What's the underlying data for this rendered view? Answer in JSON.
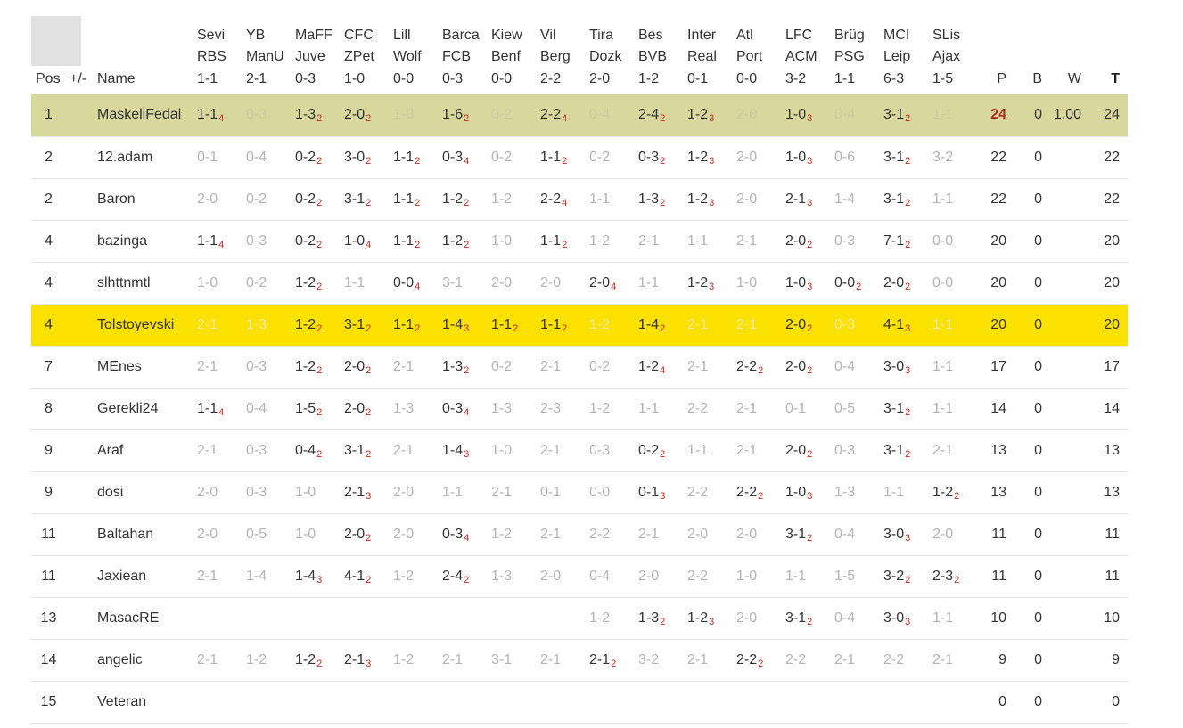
{
  "avatar_icon": "placeholder-avatar",
  "header": {
    "pos": "Pos",
    "change": "+/-",
    "name": "Name",
    "points": "P",
    "bonus": "B",
    "win": "W",
    "total": "T"
  },
  "matches": [
    {
      "home": "Sevi",
      "away": "RBS",
      "result": "1-1"
    },
    {
      "home": "YB",
      "away": "ManU",
      "result": "2-1"
    },
    {
      "home": "MaFF",
      "away": "Juve",
      "result": "0-3"
    },
    {
      "home": "CFC",
      "away": "ZPet",
      "result": "1-0"
    },
    {
      "home": "Lill",
      "away": "Wolf",
      "result": "0-0"
    },
    {
      "home": "Barca",
      "away": "FCB",
      "result": "0-3"
    },
    {
      "home": "Kiew",
      "away": "Benf",
      "result": "0-0"
    },
    {
      "home": "Vil",
      "away": "Berg",
      "result": "2-2"
    },
    {
      "home": "Tira",
      "away": "Dozk",
      "result": "2-0"
    },
    {
      "home": "Bes",
      "away": "BVB",
      "result": "1-2"
    },
    {
      "home": "Inter",
      "away": "Real",
      "result": "0-1"
    },
    {
      "home": "Atl",
      "away": "Port",
      "result": "0-0"
    },
    {
      "home": "LFC",
      "away": "ACM",
      "result": "3-2"
    },
    {
      "home": "Brüg",
      "away": "PSG",
      "result": "1-1"
    },
    {
      "home": "MCI",
      "away": "Leip",
      "result": "6-3"
    },
    {
      "home": "SLis",
      "away": "Ajax",
      "result": "1-5"
    }
  ],
  "rows": [
    {
      "pos": "1",
      "change": "",
      "name": "MaskeliFedai",
      "highlight": "leader",
      "tips": [
        [
          "1-1",
          "4"
        ],
        [
          "0-3",
          ""
        ],
        [
          "1-3",
          "2"
        ],
        [
          "2-0",
          "2"
        ],
        [
          "1-0",
          ""
        ],
        [
          "1-6",
          "2"
        ],
        [
          "0-2",
          ""
        ],
        [
          "2-2",
          "4"
        ],
        [
          "0-4",
          ""
        ],
        [
          "2-4",
          "2"
        ],
        [
          "1-2",
          "3"
        ],
        [
          "2-0",
          ""
        ],
        [
          "1-0",
          "3"
        ],
        [
          "0-4",
          ""
        ],
        [
          "3-1",
          "2"
        ],
        [
          "1-1",
          ""
        ]
      ],
      "p": "24",
      "b": "0",
      "w": "1.00",
      "t": "24"
    },
    {
      "pos": "2",
      "change": "",
      "name": "12.adam",
      "highlight": "",
      "tips": [
        [
          "0-1",
          ""
        ],
        [
          "0-4",
          ""
        ],
        [
          "0-2",
          "2"
        ],
        [
          "3-0",
          "2"
        ],
        [
          "1-1",
          "2"
        ],
        [
          "0-3",
          "4"
        ],
        [
          "0-2",
          ""
        ],
        [
          "1-1",
          "2"
        ],
        [
          "0-2",
          ""
        ],
        [
          "0-3",
          "2"
        ],
        [
          "1-2",
          "3"
        ],
        [
          "2-0",
          ""
        ],
        [
          "1-0",
          "3"
        ],
        [
          "0-6",
          ""
        ],
        [
          "3-1",
          "2"
        ],
        [
          "3-2",
          ""
        ]
      ],
      "p": "22",
      "b": "0",
      "w": "",
      "t": "22"
    },
    {
      "pos": "2",
      "change": "",
      "name": "Baron",
      "highlight": "",
      "tips": [
        [
          "2-0",
          ""
        ],
        [
          "0-2",
          ""
        ],
        [
          "0-2",
          "2"
        ],
        [
          "3-1",
          "2"
        ],
        [
          "1-1",
          "2"
        ],
        [
          "1-2",
          "2"
        ],
        [
          "1-2",
          ""
        ],
        [
          "2-2",
          "4"
        ],
        [
          "1-1",
          ""
        ],
        [
          "1-3",
          "2"
        ],
        [
          "1-2",
          "3"
        ],
        [
          "2-0",
          ""
        ],
        [
          "2-1",
          "3"
        ],
        [
          "1-4",
          ""
        ],
        [
          "3-1",
          "2"
        ],
        [
          "1-1",
          ""
        ]
      ],
      "p": "22",
      "b": "0",
      "w": "",
      "t": "22"
    },
    {
      "pos": "4",
      "change": "",
      "name": "bazinga",
      "highlight": "",
      "tips": [
        [
          "1-1",
          "4"
        ],
        [
          "0-3",
          ""
        ],
        [
          "0-2",
          "2"
        ],
        [
          "1-0",
          "4"
        ],
        [
          "1-1",
          "2"
        ],
        [
          "1-2",
          "2"
        ],
        [
          "1-0",
          ""
        ],
        [
          "1-1",
          "2"
        ],
        [
          "1-2",
          ""
        ],
        [
          "2-1",
          ""
        ],
        [
          "1-1",
          ""
        ],
        [
          "2-1",
          ""
        ],
        [
          "2-0",
          "2"
        ],
        [
          "0-3",
          ""
        ],
        [
          "7-1",
          "2"
        ],
        [
          "0-0",
          ""
        ]
      ],
      "p": "20",
      "b": "0",
      "w": "",
      "t": "20"
    },
    {
      "pos": "4",
      "change": "",
      "name": "slhttnmtl",
      "highlight": "",
      "tips": [
        [
          "1-0",
          ""
        ],
        [
          "0-2",
          ""
        ],
        [
          "1-2",
          "2"
        ],
        [
          "1-1",
          ""
        ],
        [
          "0-0",
          "4"
        ],
        [
          "3-1",
          ""
        ],
        [
          "2-0",
          ""
        ],
        [
          "2-0",
          ""
        ],
        [
          "2-0",
          "4"
        ],
        [
          "1-1",
          ""
        ],
        [
          "1-2",
          "3"
        ],
        [
          "1-0",
          ""
        ],
        [
          "1-0",
          "3"
        ],
        [
          "0-0",
          "2"
        ],
        [
          "2-0",
          "2"
        ],
        [
          "0-0",
          ""
        ]
      ],
      "p": "20",
      "b": "0",
      "w": "",
      "t": "20"
    },
    {
      "pos": "4",
      "change": "",
      "name": "Tolstoyevski",
      "highlight": "me",
      "tips": [
        [
          "2-1",
          ""
        ],
        [
          "1-3",
          ""
        ],
        [
          "1-2",
          "2"
        ],
        [
          "3-1",
          "2"
        ],
        [
          "1-1",
          "2"
        ],
        [
          "1-4",
          "3"
        ],
        [
          "1-1",
          "2"
        ],
        [
          "1-1",
          "2"
        ],
        [
          "1-2",
          ""
        ],
        [
          "1-4",
          "2"
        ],
        [
          "2-1",
          ""
        ],
        [
          "2-1",
          ""
        ],
        [
          "2-0",
          "2"
        ],
        [
          "0-3",
          ""
        ],
        [
          "4-1",
          "3"
        ],
        [
          "1-1",
          ""
        ]
      ],
      "p": "20",
      "b": "0",
      "w": "",
      "t": "20"
    },
    {
      "pos": "7",
      "change": "",
      "name": "MEnes",
      "highlight": "",
      "tips": [
        [
          "2-1",
          ""
        ],
        [
          "0-3",
          ""
        ],
        [
          "1-2",
          "2"
        ],
        [
          "2-0",
          "2"
        ],
        [
          "2-1",
          ""
        ],
        [
          "1-3",
          "2"
        ],
        [
          "0-2",
          ""
        ],
        [
          "2-1",
          ""
        ],
        [
          "0-2",
          ""
        ],
        [
          "1-2",
          "4"
        ],
        [
          "2-1",
          ""
        ],
        [
          "2-2",
          "2"
        ],
        [
          "2-0",
          "2"
        ],
        [
          "0-4",
          ""
        ],
        [
          "3-0",
          "3"
        ],
        [
          "1-1",
          ""
        ]
      ],
      "p": "17",
      "b": "0",
      "w": "",
      "t": "17"
    },
    {
      "pos": "8",
      "change": "",
      "name": "Gerekli24",
      "highlight": "",
      "tips": [
        [
          "1-1",
          "4"
        ],
        [
          "0-4",
          ""
        ],
        [
          "1-5",
          "2"
        ],
        [
          "2-0",
          "2"
        ],
        [
          "1-3",
          ""
        ],
        [
          "0-3",
          "4"
        ],
        [
          "1-3",
          ""
        ],
        [
          "2-3",
          ""
        ],
        [
          "1-2",
          ""
        ],
        [
          "1-1",
          ""
        ],
        [
          "2-2",
          ""
        ],
        [
          "2-1",
          ""
        ],
        [
          "0-1",
          ""
        ],
        [
          "0-5",
          ""
        ],
        [
          "3-1",
          "2"
        ],
        [
          "1-1",
          ""
        ]
      ],
      "p": "14",
      "b": "0",
      "w": "",
      "t": "14"
    },
    {
      "pos": "9",
      "change": "",
      "name": "Araf",
      "highlight": "",
      "tips": [
        [
          "2-1",
          ""
        ],
        [
          "0-3",
          ""
        ],
        [
          "0-4",
          "2"
        ],
        [
          "3-1",
          "2"
        ],
        [
          "2-1",
          ""
        ],
        [
          "1-4",
          "3"
        ],
        [
          "1-0",
          ""
        ],
        [
          "2-1",
          ""
        ],
        [
          "0-3",
          ""
        ],
        [
          "0-2",
          "2"
        ],
        [
          "1-1",
          ""
        ],
        [
          "2-1",
          ""
        ],
        [
          "2-0",
          "2"
        ],
        [
          "0-3",
          ""
        ],
        [
          "3-1",
          "2"
        ],
        [
          "2-1",
          ""
        ]
      ],
      "p": "13",
      "b": "0",
      "w": "",
      "t": "13"
    },
    {
      "pos": "9",
      "change": "",
      "name": "dosi",
      "highlight": "",
      "tips": [
        [
          "2-0",
          ""
        ],
        [
          "0-3",
          ""
        ],
        [
          "1-0",
          ""
        ],
        [
          "2-1",
          "3"
        ],
        [
          "2-0",
          ""
        ],
        [
          "1-1",
          ""
        ],
        [
          "2-1",
          ""
        ],
        [
          "0-1",
          ""
        ],
        [
          "0-0",
          ""
        ],
        [
          "0-1",
          "3"
        ],
        [
          "2-2",
          ""
        ],
        [
          "2-2",
          "2"
        ],
        [
          "1-0",
          "3"
        ],
        [
          "1-3",
          ""
        ],
        [
          "1-1",
          ""
        ],
        [
          "1-2",
          "2"
        ]
      ],
      "p": "13",
      "b": "0",
      "w": "",
      "t": "13"
    },
    {
      "pos": "11",
      "change": "",
      "name": "Baltahan",
      "highlight": "",
      "tips": [
        [
          "2-0",
          ""
        ],
        [
          "0-5",
          ""
        ],
        [
          "1-0",
          ""
        ],
        [
          "2-0",
          "2"
        ],
        [
          "2-0",
          ""
        ],
        [
          "0-3",
          "4"
        ],
        [
          "1-2",
          ""
        ],
        [
          "2-1",
          ""
        ],
        [
          "2-2",
          ""
        ],
        [
          "2-1",
          ""
        ],
        [
          "2-0",
          ""
        ],
        [
          "2-0",
          ""
        ],
        [
          "3-1",
          "2"
        ],
        [
          "0-4",
          ""
        ],
        [
          "3-0",
          "3"
        ],
        [
          "2-0",
          ""
        ]
      ],
      "p": "11",
      "b": "0",
      "w": "",
      "t": "11"
    },
    {
      "pos": "11",
      "change": "",
      "name": "Jaxiean",
      "highlight": "",
      "tips": [
        [
          "2-1",
          ""
        ],
        [
          "1-4",
          ""
        ],
        [
          "1-4",
          "3"
        ],
        [
          "4-1",
          "2"
        ],
        [
          "1-2",
          ""
        ],
        [
          "2-4",
          "2"
        ],
        [
          "1-3",
          ""
        ],
        [
          "2-0",
          ""
        ],
        [
          "0-4",
          ""
        ],
        [
          "2-0",
          ""
        ],
        [
          "2-2",
          ""
        ],
        [
          "1-0",
          ""
        ],
        [
          "1-1",
          ""
        ],
        [
          "1-5",
          ""
        ],
        [
          "3-2",
          "2"
        ],
        [
          "2-3",
          "2"
        ]
      ],
      "p": "11",
      "b": "0",
      "w": "",
      "t": "11"
    },
    {
      "pos": "13",
      "change": "",
      "name": "MasacRE",
      "highlight": "",
      "tips": [
        [
          "",
          ""
        ],
        [
          "",
          ""
        ],
        [
          "",
          ""
        ],
        [
          "",
          ""
        ],
        [
          "",
          ""
        ],
        [
          "",
          ""
        ],
        [
          "",
          ""
        ],
        [
          "",
          ""
        ],
        [
          "1-2",
          ""
        ],
        [
          "1-3",
          "2"
        ],
        [
          "1-2",
          "3"
        ],
        [
          "2-0",
          ""
        ],
        [
          "3-1",
          "2"
        ],
        [
          "0-4",
          ""
        ],
        [
          "3-0",
          "3"
        ],
        [
          "1-1",
          ""
        ]
      ],
      "p": "10",
      "b": "0",
      "w": "",
      "t": "10"
    },
    {
      "pos": "14",
      "change": "",
      "name": "angelic",
      "highlight": "",
      "tips": [
        [
          "2-1",
          ""
        ],
        [
          "1-2",
          ""
        ],
        [
          "1-2",
          "2"
        ],
        [
          "2-1",
          "3"
        ],
        [
          "1-2",
          ""
        ],
        [
          "2-1",
          ""
        ],
        [
          "3-1",
          ""
        ],
        [
          "2-1",
          ""
        ],
        [
          "2-1",
          "2"
        ],
        [
          "3-2",
          ""
        ],
        [
          "2-1",
          ""
        ],
        [
          "2-2",
          "2"
        ],
        [
          "2-2",
          ""
        ],
        [
          "2-1",
          ""
        ],
        [
          "2-2",
          ""
        ],
        [
          "2-1",
          ""
        ]
      ],
      "p": "9",
      "b": "0",
      "w": "",
      "t": "9"
    },
    {
      "pos": "15",
      "change": "",
      "name": "Veteran",
      "highlight": "",
      "tips": [
        [
          "",
          ""
        ],
        [
          "",
          ""
        ],
        [
          "",
          ""
        ],
        [
          "",
          ""
        ],
        [
          "",
          ""
        ],
        [
          "",
          ""
        ],
        [
          "",
          ""
        ],
        [
          "",
          ""
        ],
        [
          "",
          ""
        ],
        [
          "",
          ""
        ],
        [
          "",
          ""
        ],
        [
          "",
          ""
        ],
        [
          "",
          ""
        ],
        [
          "",
          ""
        ],
        [
          "",
          ""
        ],
        [
          "",
          ""
        ]
      ],
      "p": "0",
      "b": "0",
      "w": "",
      "t": "0"
    }
  ]
}
